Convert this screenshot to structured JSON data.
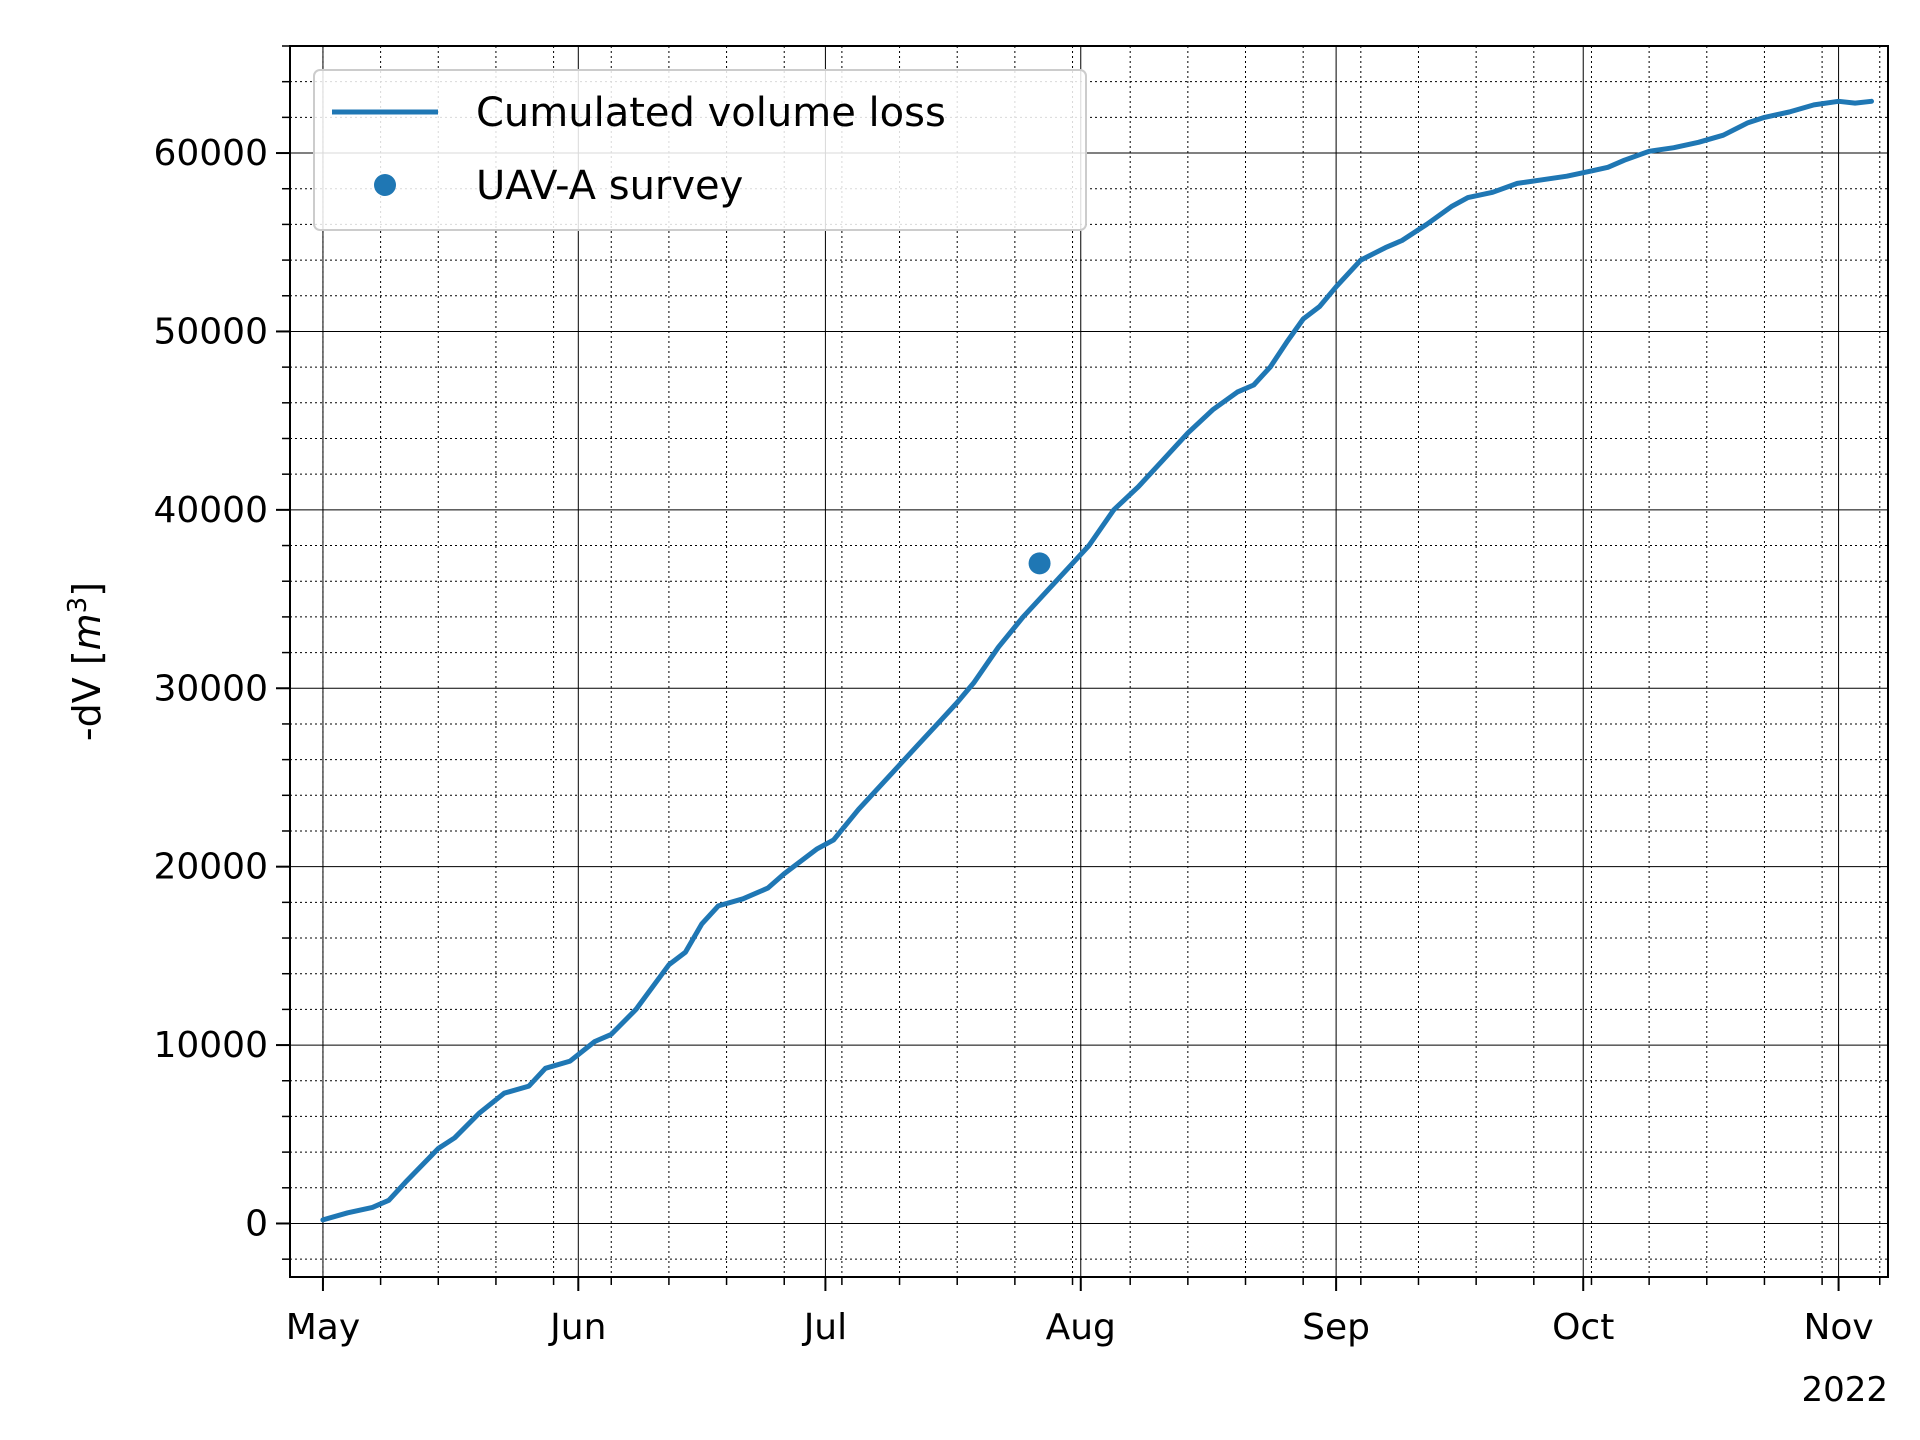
{
  "chart_data": {
    "type": "line",
    "ylabel": "-dV [m³]",
    "ylabel_base": "-dV [",
    "ylabel_var": "m",
    "ylabel_exp": "3",
    "ylabel_close": "]",
    "year_label": "2022",
    "xlim": [
      "2022-04-27",
      "2022-11-07"
    ],
    "ylim": [
      -3000,
      66000
    ],
    "grid": true,
    "legend_position": "top-left",
    "x_ticks": [
      {
        "date": "2022-05-01",
        "label": "May"
      },
      {
        "date": "2022-06-01",
        "label": "Jun"
      },
      {
        "date": "2022-07-01",
        "label": "Jul"
      },
      {
        "date": "2022-08-01",
        "label": "Aug"
      },
      {
        "date": "2022-09-01",
        "label": "Sep"
      },
      {
        "date": "2022-10-01",
        "label": "Oct"
      },
      {
        "date": "2022-11-01",
        "label": "Nov"
      }
    ],
    "y_ticks": [
      0,
      10000,
      20000,
      30000,
      40000,
      50000,
      60000
    ],
    "series": [
      {
        "name": "Cumulated volume loss",
        "color": "#1f77b4",
        "style": "line",
        "points": [
          [
            "2022-05-01",
            200
          ],
          [
            "2022-05-04",
            600
          ],
          [
            "2022-05-07",
            900
          ],
          [
            "2022-05-09",
            1300
          ],
          [
            "2022-05-11",
            2300
          ],
          [
            "2022-05-15",
            4200
          ],
          [
            "2022-05-17",
            4800
          ],
          [
            "2022-05-20",
            6200
          ],
          [
            "2022-05-23",
            7300
          ],
          [
            "2022-05-26",
            7700
          ],
          [
            "2022-05-28",
            8700
          ],
          [
            "2022-05-31",
            9100
          ],
          [
            "2022-06-03",
            10200
          ],
          [
            "2022-06-05",
            10600
          ],
          [
            "2022-06-08",
            12000
          ],
          [
            "2022-06-12",
            14500
          ],
          [
            "2022-06-14",
            15200
          ],
          [
            "2022-06-16",
            16800
          ],
          [
            "2022-06-18",
            17800
          ],
          [
            "2022-06-21",
            18200
          ],
          [
            "2022-06-24",
            18800
          ],
          [
            "2022-06-26",
            19600
          ],
          [
            "2022-06-28",
            20300
          ],
          [
            "2022-06-30",
            21000
          ],
          [
            "2022-07-02",
            21500
          ],
          [
            "2022-07-05",
            23200
          ],
          [
            "2022-07-08",
            24700
          ],
          [
            "2022-07-12",
            26700
          ],
          [
            "2022-07-15",
            28200
          ],
          [
            "2022-07-17",
            29200
          ],
          [
            "2022-07-19",
            30300
          ],
          [
            "2022-07-22",
            32300
          ],
          [
            "2022-07-25",
            34000
          ],
          [
            "2022-07-27",
            35000
          ],
          [
            "2022-07-30",
            36500
          ],
          [
            "2022-07-31",
            37000
          ],
          [
            "2022-08-02",
            38000
          ],
          [
            "2022-08-05",
            40000
          ],
          [
            "2022-08-08",
            41300
          ],
          [
            "2022-08-11",
            42800
          ],
          [
            "2022-08-14",
            44300
          ],
          [
            "2022-08-17",
            45600
          ],
          [
            "2022-08-20",
            46600
          ],
          [
            "2022-08-22",
            47000
          ],
          [
            "2022-08-24",
            48000
          ],
          [
            "2022-08-26",
            49400
          ],
          [
            "2022-08-28",
            50700
          ],
          [
            "2022-08-30",
            51400
          ],
          [
            "2022-09-01",
            52500
          ],
          [
            "2022-09-04",
            54000
          ],
          [
            "2022-09-07",
            54700
          ],
          [
            "2022-09-09",
            55100
          ],
          [
            "2022-09-12",
            56000
          ],
          [
            "2022-09-15",
            57000
          ],
          [
            "2022-09-17",
            57500
          ],
          [
            "2022-09-20",
            57800
          ],
          [
            "2022-09-23",
            58300
          ],
          [
            "2022-09-26",
            58500
          ],
          [
            "2022-09-29",
            58700
          ],
          [
            "2022-10-02",
            59000
          ],
          [
            "2022-10-04",
            59200
          ],
          [
            "2022-10-06",
            59600
          ],
          [
            "2022-10-09",
            60100
          ],
          [
            "2022-10-12",
            60300
          ],
          [
            "2022-10-15",
            60600
          ],
          [
            "2022-10-18",
            61000
          ],
          [
            "2022-10-21",
            61700
          ],
          [
            "2022-10-23",
            62000
          ],
          [
            "2022-10-26",
            62300
          ],
          [
            "2022-10-29",
            62700
          ],
          [
            "2022-11-01",
            62900
          ],
          [
            "2022-11-03",
            62800
          ],
          [
            "2022-11-05",
            62900
          ]
        ]
      },
      {
        "name": "UAV-A survey",
        "color": "#1f77b4",
        "style": "marker",
        "points": [
          [
            "2022-07-27",
            37000
          ]
        ]
      }
    ]
  }
}
